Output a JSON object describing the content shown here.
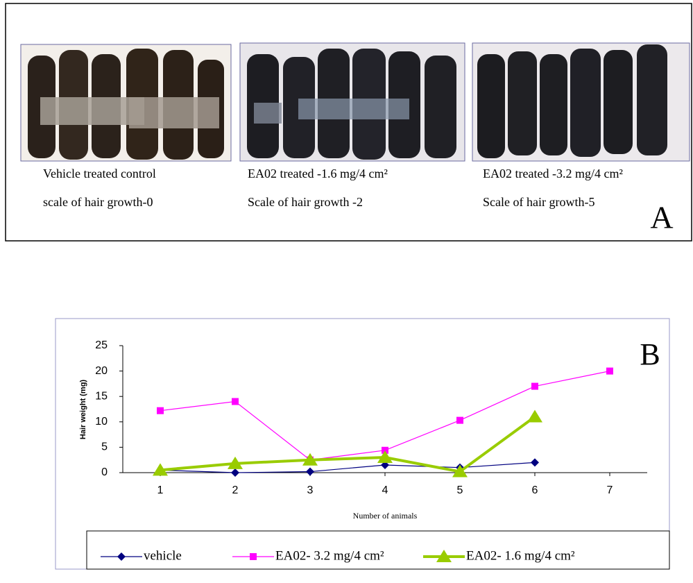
{
  "panel_a": {
    "label": "A",
    "captions": [
      [
        "Vehicle treated control",
        "scale of hair growth-0"
      ],
      [
        "EA02 treated -1.6 mg/4 cm²",
        "Scale of hair growth -2"
      ],
      [
        "EA02 treated -3.2 mg/4 cm²",
        "Scale of hair growth-5"
      ]
    ]
  },
  "chart_data": {
    "type": "line",
    "label": "B",
    "x_label": "Number of animals",
    "y_label": "Hair weight (mg)",
    "x": [
      1,
      2,
      3,
      4,
      5,
      6,
      7
    ],
    "xlim": [
      0.5,
      7.5
    ],
    "xticks": [
      1,
      2,
      3,
      4,
      5,
      6,
      7
    ],
    "ylim": [
      0,
      25
    ],
    "yticks": [
      0,
      5,
      10,
      15,
      20,
      25
    ],
    "series": [
      {
        "name": "vehicle",
        "color": "#000080",
        "marker": "diamond",
        "line_width": 1.2,
        "values": [
          0.5,
          0,
          0.2,
          1.5,
          1,
          2,
          null
        ]
      },
      {
        "name": "EA02- 3.2 mg/4 cm²",
        "color": "#ff00ff",
        "marker": "square",
        "line_width": 1.2,
        "values": [
          12.2,
          14,
          2.5,
          4.4,
          10.3,
          17,
          20
        ]
      },
      {
        "name": "EA02- 1.6 mg/4 cm²",
        "color": "#99cc00",
        "marker": "triangle",
        "line_width": 4,
        "values": [
          0.5,
          1.8,
          2.5,
          3,
          0.2,
          11,
          null
        ]
      }
    ]
  }
}
